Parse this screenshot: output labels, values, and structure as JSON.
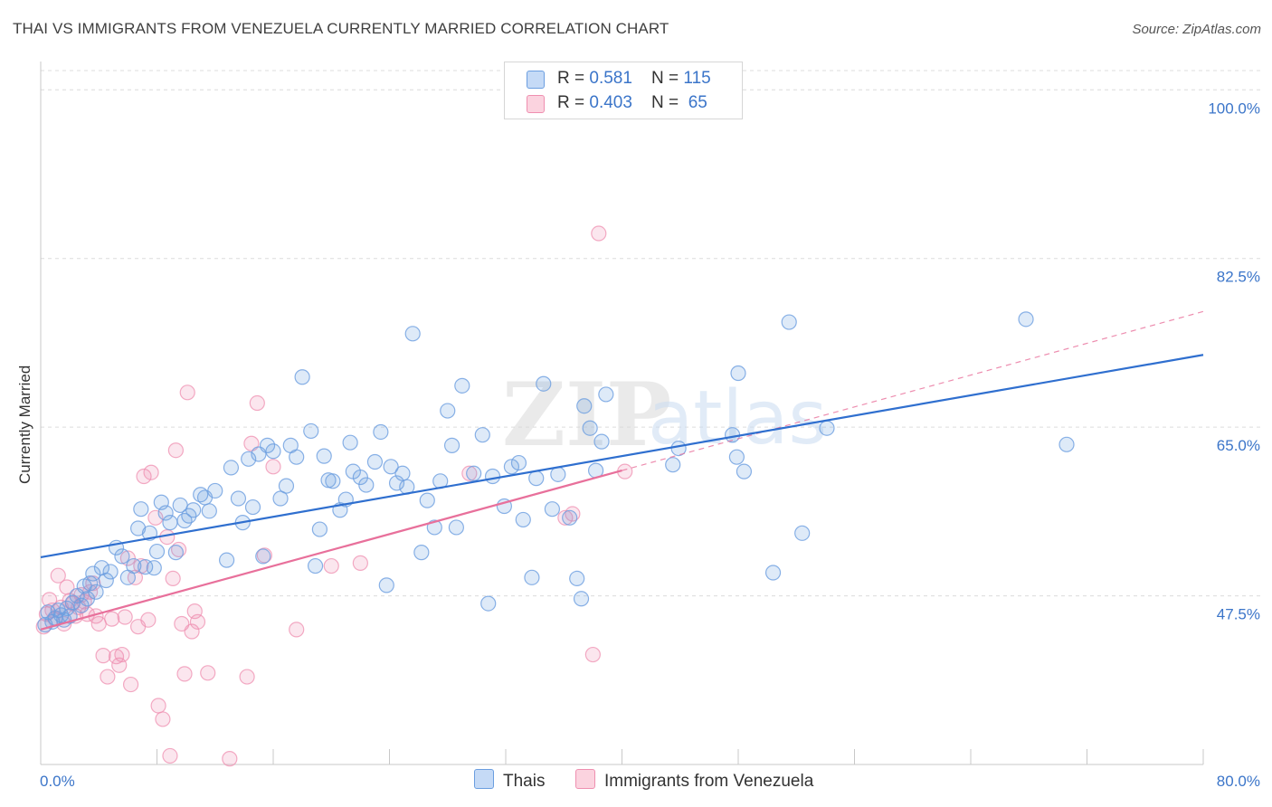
{
  "header": {
    "title": "THAI VS IMMIGRANTS FROM VENEZUELA CURRENTLY MARRIED CORRELATION CHART",
    "source": "Source: ZipAtlas.com"
  },
  "legend": {
    "rows": [
      {
        "r_label": "R = ",
        "r_value": "0.581",
        "n_label": "N = ",
        "n_value": "115",
        "color": "#a9c8f0"
      },
      {
        "r_label": "R = ",
        "r_value": "0.403",
        "n_label": "N = ",
        "n_value": "65",
        "color": "#f6b8cb"
      }
    ]
  },
  "chart_data": {
    "type": "scatter",
    "title": "THAI VS IMMIGRANTS FROM VENEZUELA CURRENTLY MARRIED CORRELATION CHART",
    "xlabel": "",
    "ylabel": "Currently Married",
    "xlim": [
      0,
      80
    ],
    "ylim": [
      30,
      102
    ],
    "x_tick_labels": [
      "0.0%",
      "80.0%"
    ],
    "y_ticks": [
      47.5,
      65.0,
      82.5,
      100.0
    ],
    "y_tick_labels": [
      "47.5%",
      "65.0%",
      "82.5%",
      "100.0%"
    ],
    "grid": true,
    "legend_position": "top-center",
    "watermark": "ZIPatlas",
    "colors": {
      "thais": "#6b9ee0",
      "venezuela": "#ef8fb0",
      "thais_line": "#2f6fcf",
      "venezuela_line": "#e8709b"
    },
    "series": [
      {
        "name": "Thais",
        "trend": {
          "x": [
            0,
            80
          ],
          "y": [
            51.5,
            72.5
          ]
        },
        "points": [
          [
            0.3,
            44.5
          ],
          [
            0.5,
            45.8
          ],
          [
            0.8,
            44.8
          ],
          [
            1.0,
            45.2
          ],
          [
            1.2,
            46.0
          ],
          [
            1.4,
            45.5
          ],
          [
            1.6,
            45.0
          ],
          [
            1.8,
            46.2
          ],
          [
            2.0,
            45.4
          ],
          [
            2.2,
            46.8
          ],
          [
            2.5,
            47.5
          ],
          [
            2.8,
            46.5
          ],
          [
            3.0,
            48.5
          ],
          [
            3.2,
            47.2
          ],
          [
            3.4,
            48.8
          ],
          [
            3.6,
            49.8
          ],
          [
            3.8,
            47.9
          ],
          [
            4.2,
            50.4
          ],
          [
            4.5,
            49.1
          ],
          [
            4.8,
            50.0
          ],
          [
            5.2,
            52.5
          ],
          [
            5.6,
            51.6
          ],
          [
            6.0,
            49.4
          ],
          [
            6.4,
            50.6
          ],
          [
            6.7,
            54.5
          ],
          [
            6.9,
            56.5
          ],
          [
            7.2,
            50.5
          ],
          [
            7.5,
            54.0
          ],
          [
            7.8,
            50.4
          ],
          [
            8.0,
            52.1
          ],
          [
            8.3,
            57.2
          ],
          [
            8.6,
            56.1
          ],
          [
            8.9,
            55.1
          ],
          [
            9.3,
            52.0
          ],
          [
            9.6,
            56.9
          ],
          [
            9.9,
            55.3
          ],
          [
            10.2,
            55.8
          ],
          [
            10.5,
            56.4
          ],
          [
            11.0,
            58.0
          ],
          [
            11.3,
            57.7
          ],
          [
            11.6,
            56.3
          ],
          [
            12.0,
            58.4
          ],
          [
            12.8,
            51.2
          ],
          [
            13.1,
            60.8
          ],
          [
            13.6,
            57.6
          ],
          [
            13.9,
            55.1
          ],
          [
            14.3,
            61.7
          ],
          [
            14.6,
            56.7
          ],
          [
            15.0,
            62.2
          ],
          [
            15.3,
            51.6
          ],
          [
            15.6,
            63.1
          ],
          [
            16.0,
            62.5
          ],
          [
            16.5,
            57.6
          ],
          [
            16.9,
            58.9
          ],
          [
            17.2,
            63.1
          ],
          [
            17.6,
            61.9
          ],
          [
            18.0,
            70.2
          ],
          [
            18.6,
            64.6
          ],
          [
            18.9,
            50.6
          ],
          [
            19.2,
            54.4
          ],
          [
            19.5,
            62.0
          ],
          [
            19.8,
            59.5
          ],
          [
            20.1,
            59.4
          ],
          [
            20.6,
            56.4
          ],
          [
            21.0,
            57.5
          ],
          [
            21.3,
            63.4
          ],
          [
            21.5,
            60.4
          ],
          [
            22.0,
            59.8
          ],
          [
            22.4,
            59.0
          ],
          [
            23.0,
            61.4
          ],
          [
            23.4,
            64.5
          ],
          [
            23.8,
            48.6
          ],
          [
            24.1,
            60.9
          ],
          [
            24.5,
            59.2
          ],
          [
            24.9,
            60.2
          ],
          [
            25.2,
            58.8
          ],
          [
            25.6,
            74.7
          ],
          [
            26.2,
            52.0
          ],
          [
            26.6,
            57.4
          ],
          [
            27.1,
            54.6
          ],
          [
            27.5,
            59.4
          ],
          [
            28.0,
            66.7
          ],
          [
            28.3,
            63.1
          ],
          [
            28.6,
            54.6
          ],
          [
            29.0,
            69.3
          ],
          [
            29.8,
            60.2
          ],
          [
            30.4,
            64.2
          ],
          [
            30.8,
            46.7
          ],
          [
            31.1,
            59.9
          ],
          [
            31.9,
            56.8
          ],
          [
            32.4,
            60.9
          ],
          [
            32.9,
            61.3
          ],
          [
            33.2,
            55.4
          ],
          [
            33.8,
            49.4
          ],
          [
            34.1,
            59.7
          ],
          [
            34.6,
            69.5
          ],
          [
            35.2,
            56.5
          ],
          [
            35.6,
            60.1
          ],
          [
            36.4,
            55.6
          ],
          [
            36.9,
            49.3
          ],
          [
            37.2,
            47.2
          ],
          [
            37.4,
            67.2
          ],
          [
            37.8,
            64.9
          ],
          [
            38.6,
            63.5
          ],
          [
            38.9,
            68.4
          ],
          [
            38.2,
            60.5
          ],
          [
            43.5,
            61.1
          ],
          [
            43.9,
            62.8
          ],
          [
            47.6,
            64.2
          ],
          [
            47.9,
            61.9
          ],
          [
            48.0,
            70.6
          ],
          [
            48.4,
            60.4
          ],
          [
            50.4,
            49.9
          ],
          [
            51.5,
            75.9
          ],
          [
            52.4,
            54.0
          ],
          [
            54.1,
            64.9
          ],
          [
            67.8,
            76.2
          ],
          [
            70.6,
            63.2
          ]
        ]
      },
      {
        "name": "Immigrants from Venezuela",
        "trend": {
          "x": [
            0,
            40
          ],
          "y": [
            44.0,
            60.5
          ]
        },
        "trend_dashed": {
          "x": [
            40,
            80
          ],
          "y": [
            60.5,
            77.0
          ]
        },
        "points": [
          [
            0.2,
            44.3
          ],
          [
            0.4,
            45.6
          ],
          [
            0.6,
            47.1
          ],
          [
            0.8,
            46.0
          ],
          [
            1.0,
            45.1
          ],
          [
            1.2,
            49.6
          ],
          [
            1.4,
            46.3
          ],
          [
            1.6,
            44.6
          ],
          [
            1.8,
            48.4
          ],
          [
            2.0,
            47.0
          ],
          [
            2.2,
            46.7
          ],
          [
            2.4,
            45.4
          ],
          [
            2.6,
            46.3
          ],
          [
            2.8,
            47.6
          ],
          [
            3.0,
            46.9
          ],
          [
            3.2,
            45.6
          ],
          [
            3.4,
            47.9
          ],
          [
            3.6,
            48.8
          ],
          [
            3.8,
            45.4
          ],
          [
            4.0,
            44.6
          ],
          [
            4.3,
            41.3
          ],
          [
            4.6,
            39.1
          ],
          [
            4.9,
            45.1
          ],
          [
            5.2,
            41.2
          ],
          [
            5.4,
            40.3
          ],
          [
            5.6,
            41.4
          ],
          [
            5.8,
            45.3
          ],
          [
            6.0,
            51.4
          ],
          [
            6.2,
            38.3
          ],
          [
            6.5,
            49.4
          ],
          [
            6.7,
            44.3
          ],
          [
            6.9,
            50.6
          ],
          [
            7.1,
            59.9
          ],
          [
            7.4,
            45.0
          ],
          [
            7.6,
            60.3
          ],
          [
            7.9,
            55.6
          ],
          [
            8.1,
            36.1
          ],
          [
            8.4,
            34.7
          ],
          [
            8.7,
            53.6
          ],
          [
            8.9,
            30.9
          ],
          [
            9.1,
            49.3
          ],
          [
            9.3,
            62.6
          ],
          [
            9.5,
            52.3
          ],
          [
            9.7,
            44.6
          ],
          [
            9.9,
            39.4
          ],
          [
            10.1,
            68.6
          ],
          [
            10.4,
            43.8
          ],
          [
            10.6,
            45.9
          ],
          [
            10.8,
            44.8
          ],
          [
            11.5,
            39.5
          ],
          [
            13.0,
            30.6
          ],
          [
            14.2,
            39.1
          ],
          [
            14.5,
            63.3
          ],
          [
            14.9,
            67.5
          ],
          [
            15.4,
            51.7
          ],
          [
            16.0,
            60.9
          ],
          [
            17.6,
            44.0
          ],
          [
            20.0,
            50.6
          ],
          [
            22.0,
            50.9
          ],
          [
            29.5,
            60.2
          ],
          [
            36.1,
            55.6
          ],
          [
            36.6,
            56.0
          ],
          [
            38.0,
            41.4
          ],
          [
            38.4,
            85.1
          ],
          [
            40.2,
            60.4
          ]
        ]
      }
    ]
  }
}
